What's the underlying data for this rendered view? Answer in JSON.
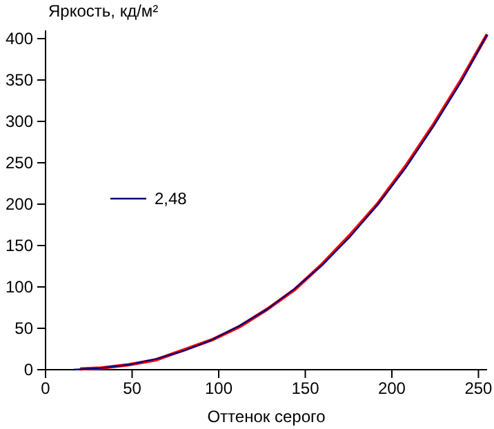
{
  "chart_data": {
    "type": "line",
    "ylabel": "Яркость, кд/м²",
    "xlabel": "Оттенок серого",
    "xlim": [
      0,
      255
    ],
    "xticks": [
      0,
      50,
      100,
      150,
      200,
      250
    ],
    "ylim": [
      0,
      410
    ],
    "yticks": [
      0,
      50,
      100,
      150,
      200,
      250,
      300,
      350,
      400
    ],
    "grid": false,
    "legend": "left",
    "marker": "none",
    "line_style": "solid",
    "series": [
      {
        "color": "#ff0000",
        "x": [
          20,
          32,
          48,
          64,
          80,
          96,
          112,
          128,
          144,
          160,
          176,
          192,
          208,
          224,
          240,
          255
        ],
        "values": [
          1,
          2,
          6,
          12,
          24,
          36,
          52,
          73,
          97,
          128,
          163,
          201,
          246,
          296,
          350,
          405
        ]
      },
      {
        "name": "2,48",
        "color": "#000080",
        "x": [
          16,
          32,
          48,
          64,
          80,
          96,
          112,
          128,
          144,
          160,
          176,
          192,
          208,
          224,
          240,
          255
        ],
        "values": [
          0,
          2,
          6,
          13,
          23,
          36,
          53,
          73,
          98,
          127,
          161,
          200,
          244,
          294,
          348,
          405
        ]
      }
    ]
  }
}
